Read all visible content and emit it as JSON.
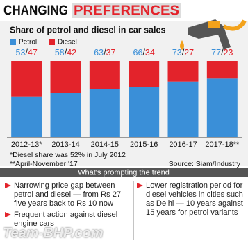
{
  "chart_data": {
    "type": "bar",
    "stacked": true,
    "title": [
      "CHANGING",
      "PREFERENCES"
    ],
    "subtitle": "Share of petrol and diesel in car sales",
    "categories": [
      "2012-13*",
      "2013-14",
      "2014-15",
      "2015-16",
      "2016-17",
      "2017-18**"
    ],
    "series": [
      {
        "name": "Petrol",
        "color": "#3a8fd8",
        "values": [
          53,
          58,
          63,
          66,
          73,
          77
        ]
      },
      {
        "name": "Diesel",
        "color": "#e3232b",
        "values": [
          47,
          42,
          37,
          34,
          27,
          23
        ]
      }
    ],
    "label_separator": "/",
    "footnotes": [
      "*Diesel share was 52% in July 2012",
      "**April-November '17"
    ],
    "source": "Source: Siam/Industry"
  },
  "panel": {
    "title": "What's prompting the trend",
    "left": [
      "Narrowing price gap between petrol and diesel — from Rs 27 five years back to Rs 10 now",
      "Frequent action against diesel engine cars"
    ],
    "right": [
      "Lower registration period for diesel vehicles in cities such as Delhi — 10 years against 15 years for petrol variants"
    ]
  },
  "watermark": "Team-BHP.com"
}
